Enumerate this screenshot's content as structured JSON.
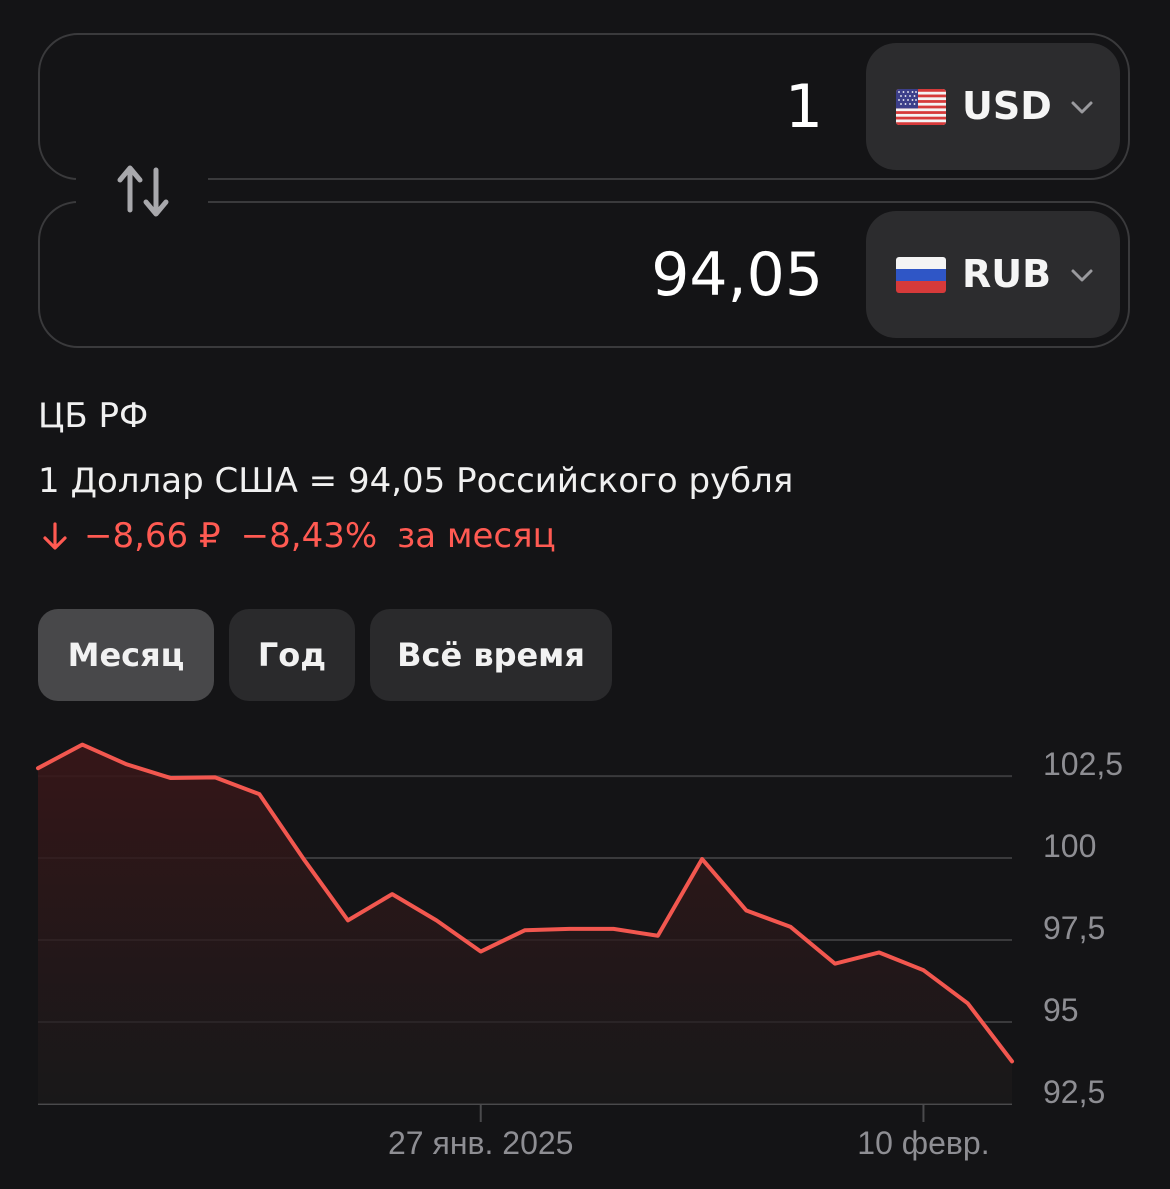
{
  "converter": {
    "from": {
      "amount": "1",
      "currency": "USD",
      "flag": "us-flag-icon"
    },
    "to": {
      "amount": "94,05",
      "currency": "RUB",
      "flag": "ru-flag-icon"
    }
  },
  "info": {
    "source": "ЦБ РФ",
    "rate_text": "1 Доллар США = 94,05 Российского рубля",
    "change_abs": "−8,66 ₽",
    "change_pct": "−8,43%",
    "change_period": "за месяц"
  },
  "periods": [
    {
      "label": "Месяц",
      "active": true
    },
    {
      "label": "Год",
      "active": false
    },
    {
      "label": "Всё время",
      "active": false
    }
  ],
  "colors": {
    "negative": "#ff5a52",
    "line": "#f2574f",
    "grid": "#3a3a3c",
    "axis_text": "#8e8e93"
  },
  "chart_data": {
    "type": "area",
    "y_ticks": [
      "102,5",
      "100",
      "97,5",
      "95",
      "92,5"
    ],
    "y_tick_values": [
      102.5,
      100,
      97.5,
      95,
      92.5
    ],
    "ylim": [
      92.5,
      103.6
    ],
    "x_labels": [
      {
        "label": "27 янв. 2025",
        "index": 10
      },
      {
        "label": "10 февр.",
        "index": 20
      }
    ],
    "series": [
      {
        "values": [
          102.74,
          103.46,
          102.86,
          102.44,
          102.46,
          101.95,
          99.97,
          98.1,
          98.9,
          98.1,
          97.15,
          97.8,
          97.84,
          97.84,
          97.63,
          99.97,
          98.4,
          97.9,
          96.78,
          97.12,
          96.58,
          95.57,
          93.8
        ]
      }
    ]
  }
}
